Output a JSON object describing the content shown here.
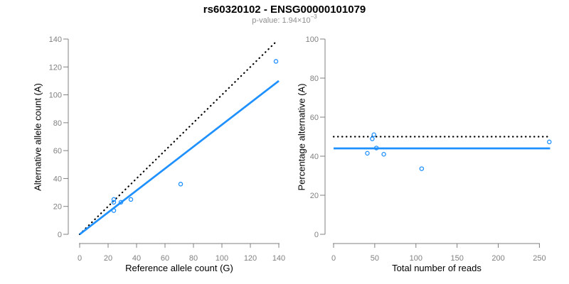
{
  "header": {
    "title": "rs60320102 - ENSG00000101079",
    "subtitle_prefix": "p-value: 1.94×10",
    "subtitle_exponent": "−3"
  },
  "colors": {
    "accent_blue": "#1E90FF",
    "axis_gray": "#808080",
    "tick_label_gray": "#808080",
    "subtitle_gray": "#8e8e8e",
    "title_black": "#000000"
  },
  "chart_data": [
    {
      "type": "scatter",
      "panel": "left",
      "xlabel": "Reference allele count (G)",
      "ylabel": "Alternative allele count (A)",
      "xlim": [
        0,
        140
      ],
      "ylim": [
        0,
        140
      ],
      "xticks": [
        0,
        20,
        40,
        60,
        80,
        100,
        120,
        140
      ],
      "yticks": [
        0,
        20,
        40,
        60,
        80,
        100,
        120,
        140
      ],
      "grid": false,
      "legend": null,
      "points": [
        {
          "x": 24,
          "y": 25
        },
        {
          "x": 24,
          "y": 23
        },
        {
          "x": 24,
          "y": 17
        },
        {
          "x": 29,
          "y": 23
        },
        {
          "x": 36,
          "y": 25
        },
        {
          "x": 71,
          "y": 36
        },
        {
          "x": 138,
          "y": 124
        }
      ],
      "lines": [
        {
          "name": "identity-line",
          "x1": 0,
          "y1": 0,
          "x2": 139,
          "y2": 139,
          "style": "dotted",
          "color": "#000000"
        },
        {
          "name": "fit-line",
          "x1": 0,
          "y1": 0,
          "x2": 140,
          "y2": 110,
          "style": "solid",
          "color": "#1E90FF"
        }
      ]
    },
    {
      "type": "scatter",
      "panel": "right",
      "xlabel": "Total number of reads",
      "ylabel": "Percentage alternative (A)",
      "xlim": [
        0,
        263
      ],
      "ylim": [
        0,
        100
      ],
      "xticks": [
        0,
        50,
        100,
        150,
        200,
        250
      ],
      "yticks": [
        0,
        20,
        40,
        60,
        80,
        100
      ],
      "grid": false,
      "legend": null,
      "points": [
        {
          "x": 49,
          "y": 51.0
        },
        {
          "x": 47,
          "y": 48.9
        },
        {
          "x": 41,
          "y": 41.5
        },
        {
          "x": 52,
          "y": 44.2
        },
        {
          "x": 61,
          "y": 41.0
        },
        {
          "x": 107,
          "y": 33.6
        },
        {
          "x": 262,
          "y": 47.3
        }
      ],
      "lines": [
        {
          "name": "fifty-percent-line",
          "x1": 0,
          "y1": 50,
          "x2": 263,
          "y2": 50,
          "style": "dotted",
          "color": "#000000"
        },
        {
          "name": "mean-percentage-line",
          "x1": 0,
          "y1": 44,
          "x2": 263,
          "y2": 44,
          "style": "solid",
          "color": "#1E90FF"
        }
      ]
    }
  ]
}
